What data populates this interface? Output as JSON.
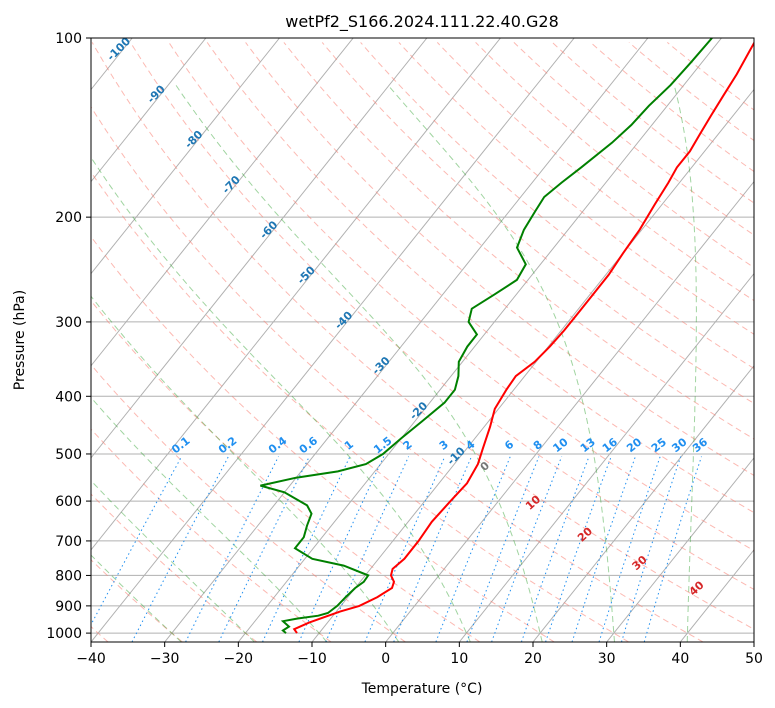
{
  "chart_data": {
    "type": "line",
    "title": "wetPf2_S166.2024.111.22.40.G28",
    "xlabel": "Temperature (°C)",
    "ylabel": "Pressure (hPa)",
    "xlim": [
      -40,
      50
    ],
    "ylim": [
      1035,
      100
    ],
    "y_scale": "log",
    "x_ticks": [
      -40,
      -30,
      -20,
      -10,
      0,
      10,
      20,
      30,
      40,
      50
    ],
    "y_ticks": [
      100,
      200,
      300,
      400,
      500,
      600,
      700,
      800,
      900,
      1000
    ],
    "grid": true,
    "skew": true,
    "series": [
      {
        "key": "temperature",
        "color": "#ff0000",
        "points": [
          [
            -13.0,
            1000
          ],
          [
            -13.8,
            985
          ],
          [
            -12.5,
            960
          ],
          [
            -11.0,
            940
          ],
          [
            -9.5,
            920
          ],
          [
            -7.5,
            900
          ],
          [
            -6.0,
            870
          ],
          [
            -5.0,
            840
          ],
          [
            -5.4,
            820
          ],
          [
            -6.5,
            800
          ],
          [
            -7.0,
            780
          ],
          [
            -6.5,
            750
          ],
          [
            -6.5,
            700
          ],
          [
            -6.8,
            650
          ],
          [
            -6.5,
            600
          ],
          [
            -6.2,
            560
          ],
          [
            -6.8,
            520
          ],
          [
            -7.8,
            490
          ],
          [
            -9.2,
            450
          ],
          [
            -10.5,
            420
          ],
          [
            -11.0,
            390
          ],
          [
            -11.2,
            370
          ],
          [
            -10.2,
            350
          ],
          [
            -9.8,
            330
          ],
          [
            -9.6,
            310
          ],
          [
            -9.6,
            290
          ],
          [
            -9.6,
            270
          ],
          [
            -9.6,
            250
          ],
          [
            -10.0,
            230
          ],
          [
            -10.3,
            210
          ],
          [
            -11.0,
            190
          ],
          [
            -11.5,
            175
          ],
          [
            -12.0,
            165
          ],
          [
            -12.0,
            155
          ],
          [
            -12.5,
            145
          ],
          [
            -13.0,
            135
          ],
          [
            -13.5,
            125
          ],
          [
            -14.0,
            115
          ],
          [
            -14.8,
            105
          ],
          [
            -15.2,
            100
          ]
        ]
      },
      {
        "key": "dewpoint",
        "color": "#008000",
        "points": [
          [
            -14.5,
            1000
          ],
          [
            -15.2,
            990
          ],
          [
            -14.8,
            975
          ],
          [
            -16.2,
            955
          ],
          [
            -14.5,
            945
          ],
          [
            -12.0,
            935
          ],
          [
            -11.0,
            925
          ],
          [
            -10.5,
            900
          ],
          [
            -10.3,
            870
          ],
          [
            -10.0,
            840
          ],
          [
            -9.5,
            820
          ],
          [
            -9.6,
            800
          ],
          [
            -14.0,
            770
          ],
          [
            -19.0,
            750
          ],
          [
            -22.5,
            720
          ],
          [
            -22.5,
            690
          ],
          [
            -23.3,
            660
          ],
          [
            -24.0,
            630
          ],
          [
            -25.5,
            610
          ],
          [
            -30.0,
            580
          ],
          [
            -34.0,
            565
          ],
          [
            -30.0,
            548
          ],
          [
            -25.0,
            535
          ],
          [
            -22.0,
            520
          ],
          [
            -20.8,
            500
          ],
          [
            -20.0,
            470
          ],
          [
            -19.0,
            440
          ],
          [
            -18.0,
            410
          ],
          [
            -18.0,
            390
          ],
          [
            -19.0,
            370
          ],
          [
            -20.5,
            350
          ],
          [
            -21.0,
            330
          ],
          [
            -21.0,
            315
          ],
          [
            -23.5,
            300
          ],
          [
            -24.5,
            285
          ],
          [
            -23.0,
            270
          ],
          [
            -21.5,
            255
          ],
          [
            -22.0,
            240
          ],
          [
            -25.0,
            225
          ],
          [
            -26.0,
            210
          ],
          [
            -26.5,
            195
          ],
          [
            -26.8,
            185
          ],
          [
            -26.0,
            175
          ],
          [
            -25.0,
            165
          ],
          [
            -23.5,
            150
          ],
          [
            -22.8,
            140
          ],
          [
            -22.5,
            130
          ],
          [
            -21.8,
            120
          ],
          [
            -21.5,
            110
          ],
          [
            -21.3,
            100
          ]
        ]
      }
    ],
    "dry_adiabats": {
      "theta_c": [
        -100,
        -90,
        -80,
        -70,
        -60,
        -50,
        -40,
        -30,
        -20,
        -10,
        0,
        10,
        20,
        30,
        40,
        50,
        60,
        70,
        80,
        90,
        100,
        110,
        120,
        130,
        140,
        150,
        160,
        170,
        180,
        190,
        200
      ],
      "color": "#fa8072"
    },
    "moist_adiabats": {
      "t_start_c": [
        -30,
        -20,
        -10,
        0,
        10,
        20,
        30,
        40
      ],
      "color": "#2ca02c"
    },
    "mixing_ratio": {
      "values_gkg": [
        0.1,
        0.2,
        0.4,
        0.6,
        1,
        1.5,
        2,
        3,
        4,
        6,
        8,
        10,
        13,
        16,
        20,
        25,
        30,
        36
      ],
      "labels": [
        "0.1",
        "0.2",
        "0.4",
        "0.6",
        "1",
        "1.5",
        "2",
        "3",
        "4",
        "6",
        "8",
        "10",
        "13",
        "16",
        "20",
        "25",
        "30",
        "36"
      ],
      "color": "#1f8ff0"
    },
    "isotherm_labels": {
      "values": [
        -100,
        -90,
        -80,
        -70,
        -60,
        -50,
        -40,
        -30,
        -20,
        -10
      ],
      "labels": [
        "-100",
        "-90",
        "-80",
        "-70",
        "-60",
        "-50",
        "-40",
        "-30",
        "-20",
        "-10"
      ],
      "color": "#1f77b4"
    },
    "lower_labels": {
      "values": [
        0,
        10,
        20,
        30,
        40
      ],
      "labels": [
        "0",
        "10",
        "20",
        "30",
        "40"
      ],
      "colors": [
        "#777777",
        "#d62728",
        "#d62728",
        "#d62728",
        "#d62728"
      ]
    }
  }
}
